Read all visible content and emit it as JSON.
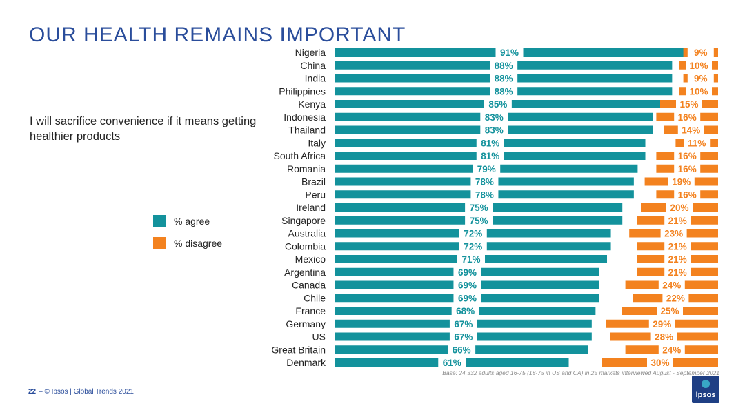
{
  "slide": {
    "title": "OUR HEALTH REMAINS IMPORTANT",
    "statement": "I will sacrifice convenience if it means getting healthier products",
    "base_note": "Base: 24,332 adults aged 16-75 (18-75 in US and CA) in 25 markets interviewed August - September 2021",
    "footer": {
      "page_number": "22",
      "text": "–  © Ipsos | Global Trends 2021"
    },
    "logo_text": "Ipsos"
  },
  "colors": {
    "agree": "#13929c",
    "disagree": "#f3821f",
    "title": "#2a4d9b"
  },
  "chart_data": {
    "type": "bar",
    "orientation": "horizontal",
    "stacked": "diverging",
    "categories": [
      "Nigeria",
      "China",
      "India",
      "Philippines",
      "Kenya",
      "Indonesia",
      "Thailand",
      "Italy",
      "South Africa",
      "Romania",
      "Brazil",
      "Peru",
      "Ireland",
      "Singapore",
      "Australia",
      "Colombia",
      "Mexico",
      "Argentina",
      "Canada",
      "Chile",
      "France",
      "Germany",
      "US",
      "Great Britain",
      "Denmark"
    ],
    "series": [
      {
        "name": "% agree",
        "color": "#13929c",
        "values": [
          91,
          88,
          88,
          88,
          85,
          83,
          83,
          81,
          81,
          79,
          78,
          78,
          75,
          75,
          72,
          72,
          71,
          69,
          69,
          69,
          68,
          67,
          67,
          66,
          61
        ]
      },
      {
        "name": "% disagree",
        "color": "#f3821f",
        "values": [
          9,
          10,
          9,
          10,
          15,
          16,
          14,
          11,
          16,
          16,
          19,
          16,
          20,
          21,
          23,
          21,
          21,
          21,
          24,
          22,
          25,
          29,
          28,
          24,
          30
        ]
      }
    ],
    "data_label_suffix": "%",
    "legend_position": "left",
    "grid": false
  }
}
